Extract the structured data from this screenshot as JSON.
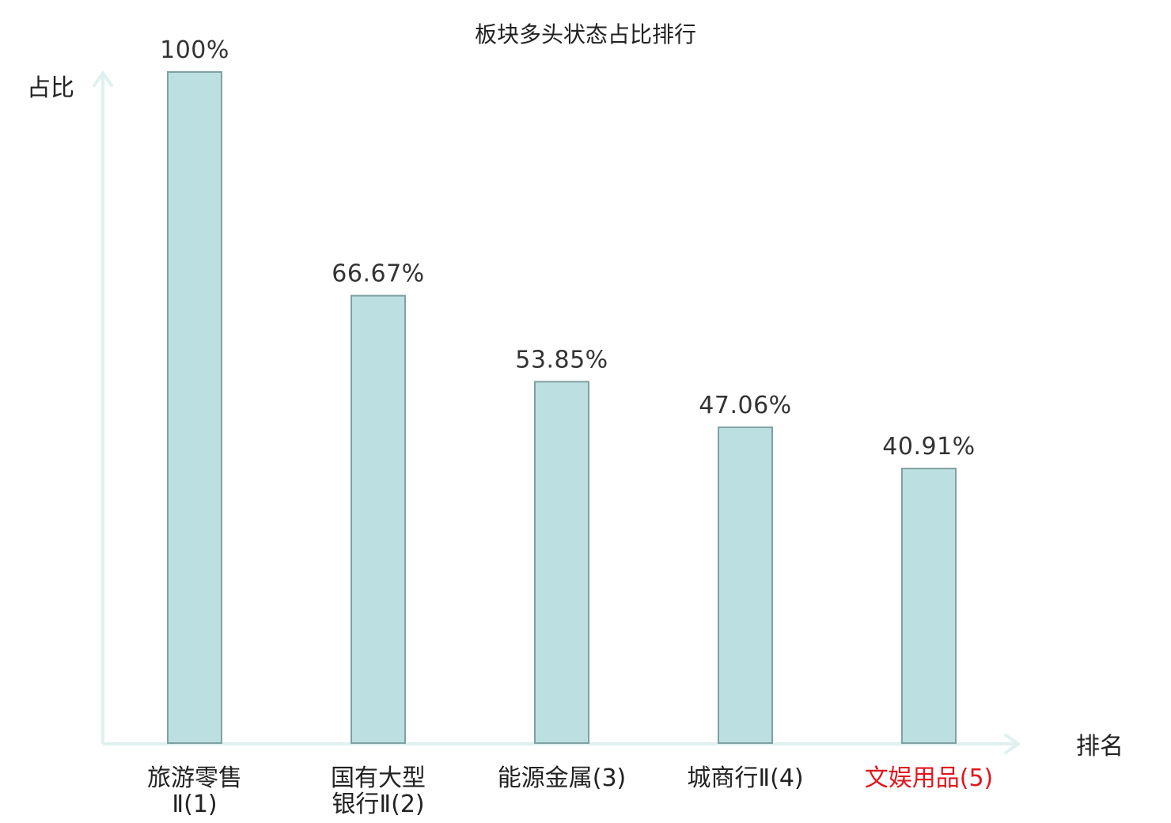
{
  "chart_data": {
    "type": "bar",
    "title": "板块多头状态占比排行",
    "xlabel": "排名",
    "ylabel": "占比",
    "ylim": [
      0,
      100
    ],
    "grid": false,
    "legend": "none",
    "categories": [
      {
        "name": "旅游零售Ⅱ",
        "rank": "(1)",
        "highlight": false
      },
      {
        "name": "国有大型银行Ⅱ",
        "rank": "(2)",
        "highlight": false
      },
      {
        "name": "能源金属",
        "rank": "(3)",
        "highlight": false
      },
      {
        "name": "城商行Ⅱ",
        "rank": "(4)",
        "highlight": false
      },
      {
        "name": "文娱用品",
        "rank": "(5)",
        "highlight": true
      }
    ],
    "values": [
      100,
      66.67,
      53.85,
      47.06,
      40.91
    ],
    "value_labels": [
      "100%",
      "66.67%",
      "53.85%",
      "47.06%",
      "40.91%"
    ],
    "colors": {
      "bar_fill": "#bce0e1",
      "bar_stroke": "#7fa1a2",
      "axis": "#dff1ef",
      "text": "#222222",
      "highlight_text": "#e0161d"
    }
  }
}
